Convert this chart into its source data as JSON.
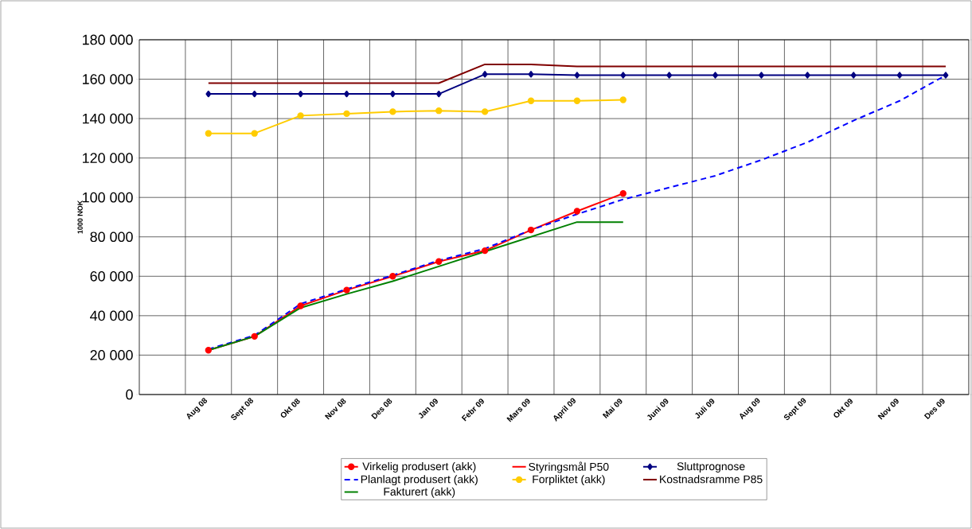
{
  "chart_data": {
    "type": "line",
    "ylabel": "1000 NOK",
    "categories": [
      null,
      "Aug 08",
      "Sept 08",
      "Okt 08",
      "Nov 08",
      "Des 08",
      "Jan 09",
      "Febr 09",
      "Mars 09",
      "April 09",
      "Mai 09",
      "Juni 09",
      "Juli 09",
      "Aug 09",
      "Sept 09",
      "Okt 09",
      "Nov 09",
      "Des 09"
    ],
    "ylim": [
      0,
      180000
    ],
    "yticks": [
      {
        "value": 0,
        "label": "0"
      },
      {
        "value": 20000,
        "label": "20 000"
      },
      {
        "value": 40000,
        "label": "40 000"
      },
      {
        "value": 60000,
        "label": "60 000"
      },
      {
        "value": 80000,
        "label": "80 000"
      },
      {
        "value": 100000,
        "label": "100 000"
      },
      {
        "value": 120000,
        "label": "120 000"
      },
      {
        "value": 140000,
        "label": "140 000"
      },
      {
        "value": 160000,
        "label": "160 000"
      },
      {
        "value": 180000,
        "label": "180 000"
      }
    ],
    "grid": true,
    "legend": "bottom",
    "series": [
      {
        "name": "Virkelig produsert (akk)",
        "color": "#ff0000",
        "marker": "circle",
        "line_style": "solid",
        "values": [
          null,
          22500,
          29500,
          45000,
          53000,
          60000,
          67500,
          73000,
          83500,
          93000,
          102000,
          null,
          null,
          null,
          null,
          null,
          null,
          null
        ]
      },
      {
        "name": "Styringsmål P50",
        "color": "#ff0000",
        "marker": "none",
        "line_style": "solid",
        "values": [
          null,
          null,
          null,
          null,
          null,
          null,
          null,
          null,
          null,
          null,
          null,
          null,
          null,
          null,
          null,
          null,
          null,
          null
        ]
      },
      {
        "name": "Sluttprognose",
        "color": "#000080",
        "marker": "diamond",
        "line_style": "solid",
        "values": [
          null,
          152500,
          152500,
          152500,
          152500,
          152500,
          152500,
          162500,
          162500,
          162000,
          162000,
          162000,
          162000,
          162000,
          162000,
          162000,
          162000,
          162000
        ]
      },
      {
        "name": "Planlagt produsert (akk)",
        "color": "#0000ff",
        "marker": "none",
        "line_style": "dashed",
        "values": [
          null,
          23000,
          30000,
          46000,
          53500,
          60500,
          68000,
          74000,
          83500,
          91500,
          99000,
          105000,
          111000,
          119000,
          128000,
          139000,
          149000,
          162000
        ]
      },
      {
        "name": "Forpliktet (akk)",
        "color": "#ffcc00",
        "marker": "circle",
        "line_style": "solid",
        "values": [
          null,
          132500,
          132500,
          141500,
          142500,
          143500,
          144000,
          143500,
          149000,
          149000,
          149500,
          null,
          null,
          null,
          null,
          null,
          null,
          null
        ]
      },
      {
        "name": "Kostnadsramme P85",
        "color": "#800000",
        "marker": "none",
        "line_style": "solid",
        "values": [
          null,
          158000,
          158000,
          158000,
          158000,
          158000,
          158000,
          167500,
          167500,
          166500,
          166500,
          166500,
          166500,
          166500,
          166500,
          166500,
          166500,
          166500
        ]
      },
      {
        "name": "Fakturert (akk)",
        "color": "#008000",
        "marker": "none",
        "line_style": "solid",
        "values": [
          null,
          22500,
          29500,
          44000,
          51000,
          57500,
          65000,
          72500,
          80000,
          87500,
          87500,
          null,
          null,
          null,
          null,
          null,
          null,
          null
        ]
      }
    ]
  }
}
